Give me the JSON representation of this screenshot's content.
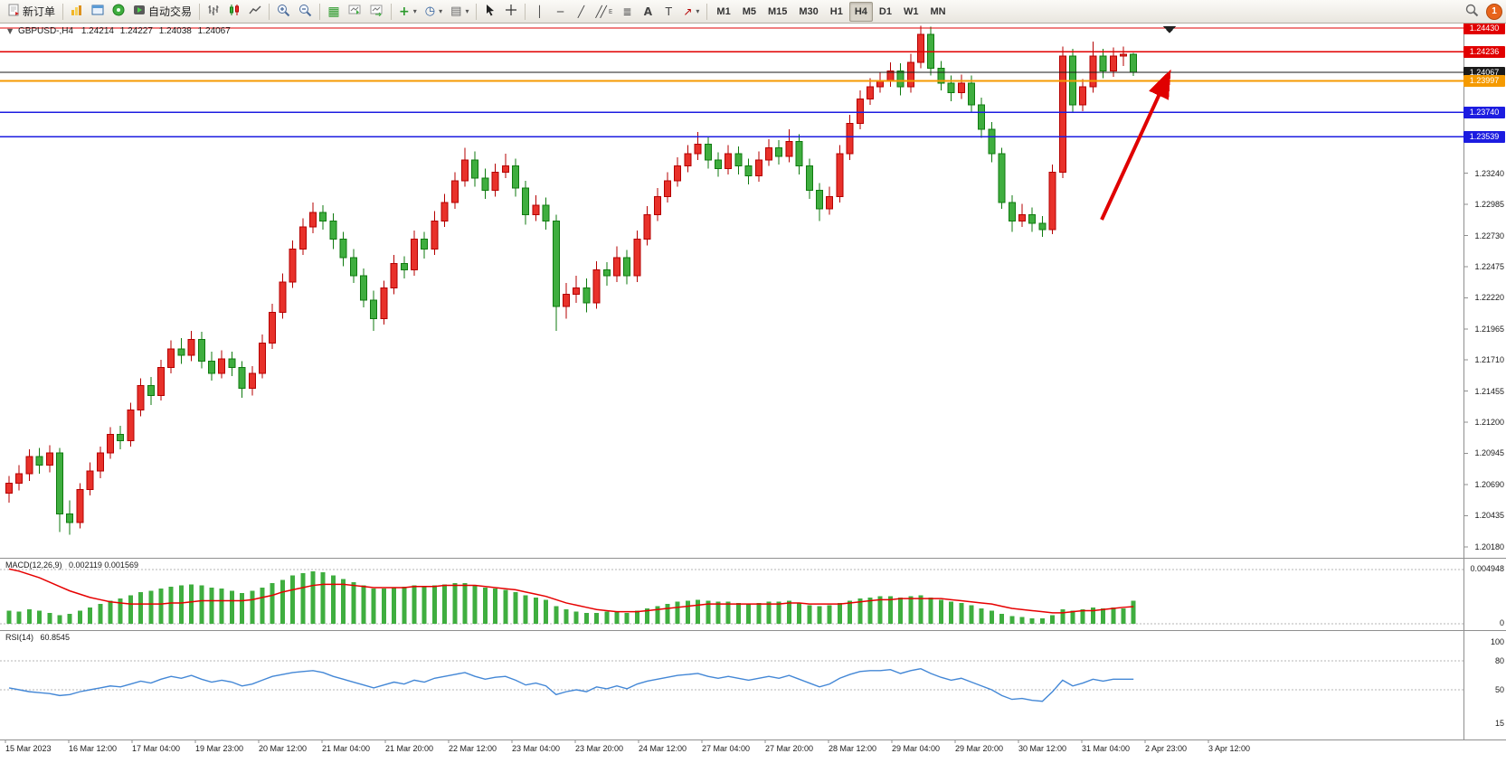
{
  "toolbar": {
    "new_order_label": "新订单",
    "autotrading_label": "自动交易",
    "timeframes": [
      "M1",
      "M5",
      "M15",
      "M30",
      "H1",
      "H4",
      "D1",
      "W1",
      "MN"
    ],
    "active_timeframe": "H4",
    "badge_count": "1",
    "icon_names": [
      "new-order-icon",
      "market-watch-icon",
      "data-window-icon",
      "navigator-icon",
      "autotrading-icon",
      "bar-chart-icon",
      "candlestick-chart-icon",
      "line-chart-icon",
      "zoom-in-icon",
      "zoom-out-icon",
      "tile-windows-icon",
      "auto-scroll-icon",
      "chart-shift-icon",
      "indicators-icon",
      "periods-icon",
      "templates-icon",
      "cursor-icon",
      "crosshair-icon",
      "vertical-line-icon",
      "horizontal-line-icon",
      "trendline-icon",
      "channel-icon",
      "fibonacci-icon",
      "text-icon",
      "label-icon",
      "arrows-icon",
      "search-icon",
      "chat-badge-icon"
    ]
  },
  "chart": {
    "header": {
      "symbol_period": "GBPUSD-,H4",
      "open": "1.24214",
      "high": "1.24227",
      "low": "1.24038",
      "close": "1.24067"
    },
    "price_axis": {
      "tagged_levels": [
        {
          "value": "1.24430",
          "price": 1.2443,
          "color": "#e10000",
          "weight": 1.4,
          "type": "resistance-line"
        },
        {
          "value": "1.24236",
          "price": 1.24236,
          "color": "#e10000",
          "weight": 1.4,
          "type": "resistance-line"
        },
        {
          "value": "1.24067",
          "price": 1.24067,
          "color": "#1a1a1a",
          "weight": 1.0,
          "type": "current-price-line"
        },
        {
          "value": "1.23997",
          "price": 1.23997,
          "color": "#f59a00",
          "weight": 2.0,
          "type": "support-line"
        },
        {
          "value": "1.23740",
          "price": 1.2374,
          "color": "#1c1ce0",
          "weight": 1.8,
          "type": "support-line"
        },
        {
          "value": "1.23539",
          "price": 1.23539,
          "color": "#1c1ce0",
          "weight": 1.8,
          "type": "support-line"
        }
      ],
      "ticks": [
        "1.23240",
        "1.22985",
        "1.22730",
        "1.22475",
        "1.22220",
        "1.21965",
        "1.21710",
        "1.21455",
        "1.21200",
        "1.20945",
        "1.20690",
        "1.20435",
        "1.20180"
      ]
    },
    "time_axis": [
      "15 Mar 2023",
      "16 Mar 12:00",
      "17 Mar 04:00",
      "19 Mar 23:00",
      "20 Mar 12:00",
      "21 Mar 04:00",
      "21 Mar 20:00",
      "22 Mar 12:00",
      "23 Mar 04:00",
      "23 Mar 20:00",
      "24 Mar 12:00",
      "27 Mar 04:00",
      "27 Mar 20:00",
      "28 Mar 12:00",
      "29 Mar 04:00",
      "29 Mar 20:00",
      "30 Mar 12:00",
      "31 Mar 04:00",
      "2 Apr 23:00",
      "3 Apr 12:00"
    ]
  },
  "indicators": {
    "macd_label": "MACD(12,26,9)",
    "macd_values": "0.002119 0.001569",
    "macd_axis": [
      "0.004948",
      "0"
    ],
    "rsi_label": "RSI(14)",
    "rsi_value": "60.8545",
    "rsi_axis": [
      "100",
      "80",
      "50",
      "15"
    ]
  },
  "annotation": {
    "arrow_color": "#e00000"
  },
  "colors": {
    "bull": "#e8312a",
    "bull_border": "#b50000",
    "bear": "#3fae3f",
    "bear_border": "#0f7a0f",
    "macd_hist": "#3fae3f",
    "macd_signal": "#e60000",
    "rsi_line": "#4387d6"
  },
  "chart_data": [
    {
      "type": "candlestick",
      "title": "GBPUSD-,H4",
      "ylim": [
        1.2018,
        1.2443
      ],
      "note": "red = bullish, green = bearish (CN convention)",
      "ohlc": [
        [
          1.2062,
          1.2076,
          1.2054,
          1.207
        ],
        [
          1.207,
          1.2085,
          1.2064,
          1.2078
        ],
        [
          1.2078,
          1.2098,
          1.2072,
          1.2092
        ],
        [
          1.2092,
          1.2099,
          1.2078,
          1.2085
        ],
        [
          1.2085,
          1.2101,
          1.2079,
          1.2095
        ],
        [
          1.2095,
          1.2099,
          1.203,
          1.2045
        ],
        [
          1.2045,
          1.2056,
          1.2028,
          1.2038
        ],
        [
          1.2038,
          1.207,
          1.2033,
          1.2065
        ],
        [
          1.2065,
          1.2087,
          1.206,
          1.208
        ],
        [
          1.208,
          1.21,
          1.2074,
          1.2095
        ],
        [
          1.2095,
          1.2116,
          1.209,
          1.211
        ],
        [
          1.211,
          1.2117,
          1.2098,
          1.2105
        ],
        [
          1.2105,
          1.2136,
          1.21,
          1.213
        ],
        [
          1.213,
          1.2156,
          1.2125,
          1.215
        ],
        [
          1.215,
          1.2157,
          1.2134,
          1.2142
        ],
        [
          1.2142,
          1.2171,
          1.2138,
          1.2165
        ],
        [
          1.2165,
          1.2187,
          1.216,
          1.218
        ],
        [
          1.218,
          1.2189,
          1.2168,
          1.2175
        ],
        [
          1.2175,
          1.2195,
          1.217,
          1.2188
        ],
        [
          1.2188,
          1.2194,
          1.2164,
          1.217
        ],
        [
          1.217,
          1.2178,
          1.2154,
          1.216
        ],
        [
          1.216,
          1.2179,
          1.2156,
          1.2172
        ],
        [
          1.2172,
          1.2178,
          1.2158,
          1.2165
        ],
        [
          1.2165,
          1.217,
          1.214,
          1.2148
        ],
        [
          1.2148,
          1.2166,
          1.2142,
          1.216
        ],
        [
          1.216,
          1.2192,
          1.2156,
          1.2185
        ],
        [
          1.2185,
          1.2217,
          1.218,
          1.221
        ],
        [
          1.221,
          1.2242,
          1.2205,
          1.2235
        ],
        [
          1.2235,
          1.2269,
          1.223,
          1.2262
        ],
        [
          1.2262,
          1.2287,
          1.2257,
          1.228
        ],
        [
          1.228,
          1.23,
          1.2275,
          1.2292
        ],
        [
          1.2292,
          1.2298,
          1.2278,
          1.2285
        ],
        [
          1.2285,
          1.2291,
          1.2262,
          1.227
        ],
        [
          1.227,
          1.2276,
          1.2248,
          1.2255
        ],
        [
          1.2255,
          1.2262,
          1.2234,
          1.224
        ],
        [
          1.224,
          1.2246,
          1.2214,
          1.222
        ],
        [
          1.222,
          1.2228,
          1.2195,
          1.2205
        ],
        [
          1.2205,
          1.2236,
          1.22,
          1.223
        ],
        [
          1.223,
          1.2257,
          1.2225,
          1.225
        ],
        [
          1.225,
          1.2256,
          1.2238,
          1.2245
        ],
        [
          1.2245,
          1.2277,
          1.224,
          1.227
        ],
        [
          1.227,
          1.2276,
          1.2254,
          1.2262
        ],
        [
          1.2262,
          1.2293,
          1.2257,
          1.2285
        ],
        [
          1.2285,
          1.2307,
          1.228,
          1.23
        ],
        [
          1.23,
          1.2325,
          1.2295,
          1.2318
        ],
        [
          1.2318,
          1.2345,
          1.2313,
          1.2335
        ],
        [
          1.2335,
          1.2342,
          1.2313,
          1.232
        ],
        [
          1.232,
          1.2328,
          1.2303,
          1.231
        ],
        [
          1.231,
          1.2332,
          1.2305,
          1.2325
        ],
        [
          1.2325,
          1.234,
          1.232,
          1.233
        ],
        [
          1.233,
          1.2336,
          1.2305,
          1.2312
        ],
        [
          1.2312,
          1.2318,
          1.2282,
          1.229
        ],
        [
          1.229,
          1.2306,
          1.2285,
          1.2298
        ],
        [
          1.2298,
          1.2304,
          1.2278,
          1.2285
        ],
        [
          1.2285,
          1.229,
          1.2195,
          1.2215
        ],
        [
          1.2215,
          1.2234,
          1.2205,
          1.2225
        ],
        [
          1.2225,
          1.224,
          1.2218,
          1.223
        ],
        [
          1.223,
          1.2238,
          1.221,
          1.2218
        ],
        [
          1.2218,
          1.2252,
          1.2213,
          1.2245
        ],
        [
          1.2245,
          1.2251,
          1.2232,
          1.224
        ],
        [
          1.224,
          1.2264,
          1.2235,
          1.2255
        ],
        [
          1.2255,
          1.2261,
          1.2233,
          1.224
        ],
        [
          1.224,
          1.2277,
          1.2235,
          1.227
        ],
        [
          1.227,
          1.2297,
          1.2265,
          1.229
        ],
        [
          1.229,
          1.2312,
          1.2285,
          1.2305
        ],
        [
          1.2305,
          1.2325,
          1.23,
          1.2318
        ],
        [
          1.2318,
          1.2337,
          1.2313,
          1.233
        ],
        [
          1.233,
          1.2347,
          1.2325,
          1.234
        ],
        [
          1.234,
          1.2358,
          1.2335,
          1.2348
        ],
        [
          1.2348,
          1.2354,
          1.2328,
          1.2335
        ],
        [
          1.2335,
          1.2341,
          1.2321,
          1.2328
        ],
        [
          1.2328,
          1.2347,
          1.2323,
          1.234
        ],
        [
          1.234,
          1.2346,
          1.2323,
          1.233
        ],
        [
          1.233,
          1.2336,
          1.2315,
          1.2322
        ],
        [
          1.2322,
          1.2342,
          1.2317,
          1.2335
        ],
        [
          1.2335,
          1.2352,
          1.233,
          1.2345
        ],
        [
          1.2345,
          1.2351,
          1.2331,
          1.2338
        ],
        [
          1.2338,
          1.236,
          1.2333,
          1.235
        ],
        [
          1.235,
          1.2356,
          1.2323,
          1.233
        ],
        [
          1.233,
          1.2336,
          1.2303,
          1.231
        ],
        [
          1.231,
          1.2316,
          1.2285,
          1.2295
        ],
        [
          1.2295,
          1.2313,
          1.229,
          1.2305
        ],
        [
          1.2305,
          1.2347,
          1.23,
          1.234
        ],
        [
          1.234,
          1.2372,
          1.2335,
          1.2365
        ],
        [
          1.2365,
          1.2392,
          1.236,
          1.2385
        ],
        [
          1.2385,
          1.2402,
          1.238,
          1.2395
        ],
        [
          1.2395,
          1.2407,
          1.239,
          1.24
        ],
        [
          1.24,
          1.2415,
          1.2395,
          1.2408
        ],
        [
          1.2408,
          1.2414,
          1.2388,
          1.2395
        ],
        [
          1.2395,
          1.2422,
          1.239,
          1.2415
        ],
        [
          1.2415,
          1.2445,
          1.241,
          1.2438
        ],
        [
          1.2438,
          1.2444,
          1.2404,
          1.241
        ],
        [
          1.241,
          1.2416,
          1.2392,
          1.2398
        ],
        [
          1.2398,
          1.2404,
          1.2383,
          1.239
        ],
        [
          1.239,
          1.2405,
          1.2385,
          1.2398
        ],
        [
          1.2398,
          1.2404,
          1.2374,
          1.238
        ],
        [
          1.238,
          1.2386,
          1.2353,
          1.236
        ],
        [
          1.236,
          1.2366,
          1.2333,
          1.234
        ],
        [
          1.234,
          1.2345,
          1.2295,
          1.23
        ],
        [
          1.23,
          1.2306,
          1.2276,
          1.2285
        ],
        [
          1.2285,
          1.2299,
          1.228,
          1.229
        ],
        [
          1.229,
          1.2296,
          1.2276,
          1.2283
        ],
        [
          1.2283,
          1.2289,
          1.2272,
          1.2278
        ],
        [
          1.2278,
          1.2331,
          1.2274,
          1.2325
        ],
        [
          1.2325,
          1.2428,
          1.232,
          1.242
        ],
        [
          1.242,
          1.2426,
          1.2374,
          1.238
        ],
        [
          1.238,
          1.2401,
          1.2375,
          1.2395
        ],
        [
          1.2395,
          1.2432,
          1.239,
          1.242
        ],
        [
          1.242,
          1.2426,
          1.2402,
          1.2408
        ],
        [
          1.2408,
          1.2427,
          1.2403,
          1.242
        ],
        [
          1.242,
          1.2428,
          1.2412,
          1.24214
        ],
        [
          1.24214,
          1.24227,
          1.24038,
          1.24067
        ]
      ]
    },
    {
      "type": "bar",
      "title": "MACD(12,26,9)",
      "current": "0.002119 0.001569",
      "ylim": [
        0,
        0.004948
      ],
      "values": [
        0.0012,
        0.0011,
        0.0013,
        0.0012,
        0.001,
        0.0008,
        0.0009,
        0.0012,
        0.0015,
        0.0018,
        0.0021,
        0.0023,
        0.0026,
        0.0029,
        0.003,
        0.0032,
        0.0034,
        0.0035,
        0.0036,
        0.0035,
        0.0033,
        0.0032,
        0.003,
        0.0028,
        0.003,
        0.0033,
        0.0037,
        0.004,
        0.0044,
        0.0046,
        0.0048,
        0.0047,
        0.0044,
        0.0041,
        0.0038,
        0.0035,
        0.0032,
        0.0032,
        0.0033,
        0.0034,
        0.0035,
        0.0034,
        0.0035,
        0.0036,
        0.0037,
        0.0037,
        0.0035,
        0.0033,
        0.0032,
        0.0031,
        0.0029,
        0.0026,
        0.0024,
        0.0022,
        0.0016,
        0.0013,
        0.0011,
        0.001,
        0.001,
        0.0011,
        0.0011,
        0.001,
        0.0012,
        0.0014,
        0.0016,
        0.0018,
        0.002,
        0.0021,
        0.0022,
        0.0021,
        0.002,
        0.002,
        0.0019,
        0.0018,
        0.0019,
        0.002,
        0.002,
        0.0021,
        0.0019,
        0.0017,
        0.0016,
        0.0017,
        0.0019,
        0.0021,
        0.0023,
        0.0024,
        0.0025,
        0.0025,
        0.0024,
        0.0025,
        0.0026,
        0.0024,
        0.0022,
        0.002,
        0.0019,
        0.0017,
        0.0014,
        0.0012,
        0.0009,
        0.0007,
        0.0006,
        0.0005,
        0.0005,
        0.0008,
        0.0013,
        0.0012,
        0.0013,
        0.0015,
        0.0014,
        0.0015,
        0.0014,
        0.002119
      ],
      "signal": [
        0.005,
        0.0048,
        0.0045,
        0.0042,
        0.0038,
        0.0034,
        0.003,
        0.0027,
        0.0024,
        0.0022,
        0.002,
        0.0019,
        0.0018,
        0.0018,
        0.0018,
        0.0018,
        0.0019,
        0.0019,
        0.002,
        0.0021,
        0.0021,
        0.0021,
        0.0021,
        0.0021,
        0.0022,
        0.0024,
        0.0026,
        0.0029,
        0.0031,
        0.0033,
        0.0035,
        0.0036,
        0.0036,
        0.0036,
        0.0035,
        0.0034,
        0.0033,
        0.0033,
        0.0033,
        0.0033,
        0.0034,
        0.0034,
        0.0034,
        0.0035,
        0.0035,
        0.0035,
        0.0035,
        0.0034,
        0.0033,
        0.0032,
        0.0031,
        0.0029,
        0.0027,
        0.0025,
        0.0022,
        0.0019,
        0.0017,
        0.0015,
        0.0013,
        0.0012,
        0.0011,
        0.0011,
        0.0011,
        0.0012,
        0.0013,
        0.0014,
        0.0015,
        0.0016,
        0.0017,
        0.0018,
        0.0018,
        0.0018,
        0.0018,
        0.0018,
        0.0018,
        0.0018,
        0.0018,
        0.0019,
        0.0019,
        0.0018,
        0.0018,
        0.0018,
        0.0018,
        0.0019,
        0.002,
        0.0021,
        0.0022,
        0.0022,
        0.0023,
        0.0023,
        0.0023,
        0.0023,
        0.0023,
        0.0022,
        0.0021,
        0.002,
        0.0019,
        0.0018,
        0.0016,
        0.0014,
        0.0013,
        0.0012,
        0.0011,
        0.001,
        0.001,
        0.0011,
        0.0012,
        0.0012,
        0.0013,
        0.0014,
        0.0015,
        0.001569
      ]
    },
    {
      "type": "line",
      "title": "RSI(14)",
      "current": "60.8545",
      "ylim": [
        0,
        100
      ],
      "levels": [
        100,
        80,
        50,
        15
      ],
      "values": [
        52,
        50,
        48,
        47,
        46,
        44,
        45,
        48,
        50,
        52,
        54,
        53,
        56,
        59,
        57,
        61,
        64,
        62,
        65,
        61,
        58,
        60,
        58,
        54,
        56,
        60,
        64,
        66,
        68,
        69,
        70,
        68,
        64,
        61,
        58,
        55,
        52,
        55,
        58,
        56,
        60,
        58,
        62,
        64,
        66,
        68,
        64,
        61,
        63,
        64,
        60,
        55,
        57,
        54,
        45,
        48,
        50,
        48,
        53,
        51,
        54,
        51,
        56,
        59,
        61,
        63,
        65,
        66,
        67,
        64,
        62,
        64,
        62,
        60,
        62,
        64,
        62,
        65,
        61,
        57,
        53,
        56,
        62,
        66,
        69,
        70,
        70,
        71,
        67,
        70,
        72,
        67,
        63,
        60,
        62,
        58,
        54,
        50,
        44,
        40,
        41,
        39,
        38,
        48,
        60,
        54,
        57,
        61,
        59,
        61,
        61,
        61
      ]
    }
  ]
}
